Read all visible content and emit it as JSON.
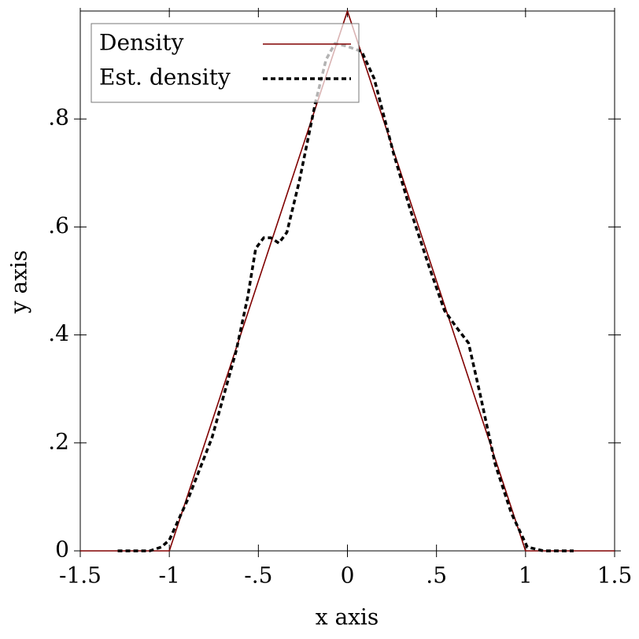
{
  "chart_data": {
    "type": "line",
    "x_label": "x axis",
    "y_label": "y axis",
    "xlim": [
      -1.5,
      1.5
    ],
    "ylim": [
      0,
      1
    ],
    "xticks": [
      -1.5,
      -1,
      {
        "value": -0.5,
        "label": "-.5"
      },
      0,
      {
        "value": 0.5,
        "label": ".5"
      },
      1,
      1.5
    ],
    "yticks": [
      0,
      {
        "value": 0.2,
        "label": ".2"
      },
      {
        "value": 0.4,
        "label": ".4"
      },
      {
        "value": 0.6,
        "label": ".6"
      },
      {
        "value": 0.8,
        "label": ".8"
      }
    ],
    "legend": "top-left",
    "series": [
      {
        "name": "Density",
        "color": "#800000",
        "dash": false,
        "x": [
          -1.5,
          -1,
          0,
          1,
          1.5
        ],
        "values": [
          0,
          0,
          1,
          0,
          0
        ]
      },
      {
        "name": "Est. density",
        "color": "#000000",
        "dash": true,
        "x": [
          -1.29,
          -1.11,
          -1.045,
          -1.0,
          -0.89,
          -0.76,
          -0.625,
          -0.56,
          -0.515,
          -0.47,
          -0.43,
          -0.385,
          -0.34,
          -0.27,
          -0.18,
          -0.12,
          -0.07,
          -0.005,
          0.08,
          0.15,
          0.26,
          0.35,
          0.46,
          0.545,
          0.61,
          0.68,
          0.745,
          0.83,
          0.92,
          1.01,
          1.1,
          1.27
        ],
        "values": [
          0,
          0,
          0.007,
          0.02,
          0.1,
          0.21,
          0.37,
          0.47,
          0.56,
          0.58,
          0.58,
          0.57,
          0.59,
          0.685,
          0.83,
          0.91,
          0.94,
          0.935,
          0.925,
          0.875,
          0.735,
          0.635,
          0.525,
          0.445,
          0.415,
          0.385,
          0.29,
          0.16,
          0.07,
          0.007,
          0,
          0
        ]
      }
    ]
  }
}
